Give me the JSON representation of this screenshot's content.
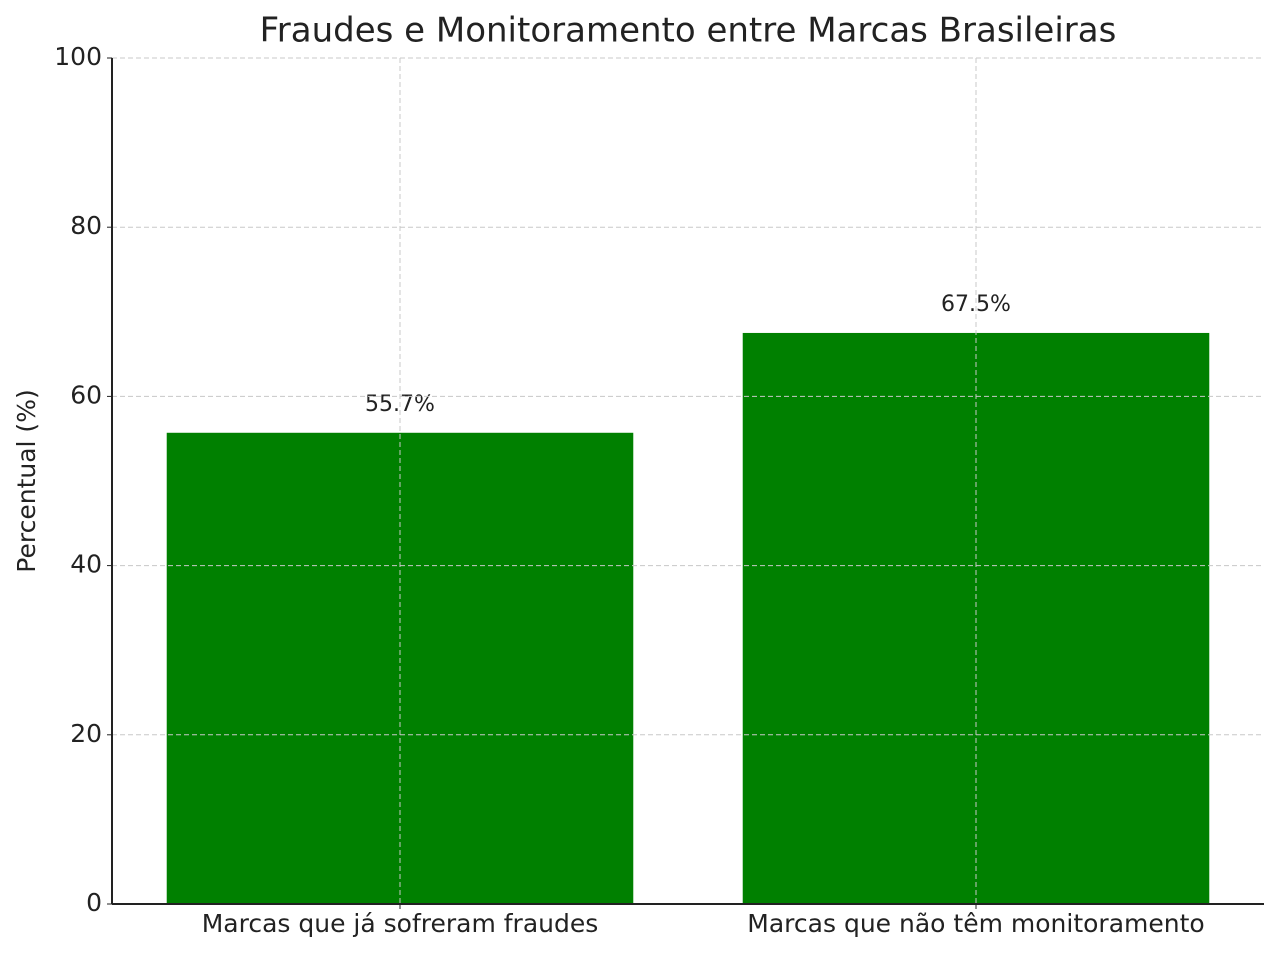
{
  "chart_data": {
    "type": "bar",
    "title": "Fraudes e Monitoramento entre Marcas Brasileiras",
    "y_label": "Percentual (%)",
    "categories": [
      "Marcas que já sofreram fraudes",
      "Marcas que não têm monitoramento"
    ],
    "values": [
      55.7,
      67.5
    ],
    "value_labels": [
      "55.7%",
      "67.5%"
    ],
    "color": "#008000",
    "ylim": [
      0,
      100
    ],
    "yticks": [
      0,
      20,
      40,
      60,
      80,
      100
    ],
    "grid": true
  }
}
